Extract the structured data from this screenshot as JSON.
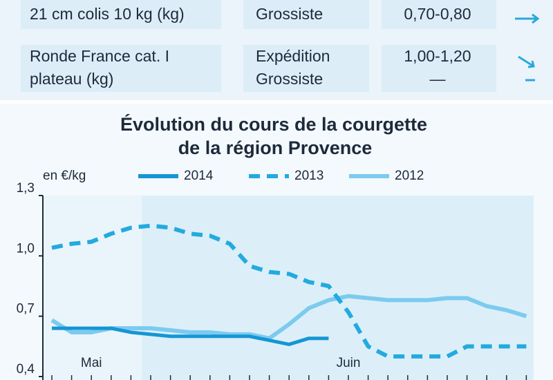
{
  "table": {
    "rows": [
      {
        "cells": [
          [
            "21 cm colis 10 kg (kg)"
          ],
          [
            "Grossiste"
          ],
          [
            "0,70-0,80"
          ]
        ]
      },
      {
        "cells": [
          [
            "Ronde France cat. I",
            "plateau (kg)"
          ],
          [
            "Expédition",
            "Grossiste"
          ],
          [
            "1,00-1,20",
            "—"
          ]
        ]
      }
    ]
  },
  "chart_data": {
    "type": "line",
    "title": [
      "Évolution du cours de la courgette",
      "de la région Provence"
    ],
    "y_label": "en €/kg",
    "categories": [
      null,
      null,
      "Mai",
      null,
      null,
      null,
      null,
      null,
      null,
      null,
      null,
      null,
      null,
      null,
      null,
      "Juin",
      null,
      null,
      null,
      null,
      null,
      null,
      null,
      null,
      null
    ],
    "ylim": [
      0.4,
      1.3
    ],
    "yticks": [
      {
        "value": 0.4,
        "label": "0,4"
      },
      {
        "value": 0.7,
        "label": "0,7"
      },
      {
        "value": 1.0,
        "label": "1,0"
      },
      {
        "value": 1.3,
        "label": "1,3"
      }
    ],
    "series": [
      {
        "name": "2014",
        "color": "#1596d4",
        "dash": false,
        "values": [
          0.64,
          0.64,
          0.64,
          0.64,
          0.62,
          0.61,
          0.6,
          0.6,
          0.6,
          0.6,
          0.6,
          0.58,
          0.56,
          0.59,
          0.59,
          null,
          null,
          null,
          null,
          null,
          null,
          null,
          null,
          null,
          null
        ]
      },
      {
        "name": "2013",
        "color": "#23aadf",
        "dash": true,
        "values": [
          1.04,
          1.06,
          1.07,
          1.11,
          1.14,
          1.15,
          1.14,
          1.11,
          1.1,
          1.06,
          0.95,
          0.92,
          0.91,
          0.87,
          0.85,
          0.72,
          0.55,
          0.5,
          0.5,
          0.5,
          0.5,
          0.55,
          0.55,
          0.55,
          0.55
        ]
      },
      {
        "name": "2012",
        "color": "#7ccbef",
        "dash": false,
        "values": [
          0.68,
          0.62,
          0.62,
          0.64,
          0.64,
          0.64,
          0.63,
          0.62,
          0.62,
          0.61,
          0.61,
          0.59,
          0.66,
          0.74,
          0.78,
          0.8,
          0.79,
          0.78,
          0.78,
          0.78,
          0.79,
          0.79,
          0.75,
          0.73,
          0.7
        ]
      }
    ]
  }
}
